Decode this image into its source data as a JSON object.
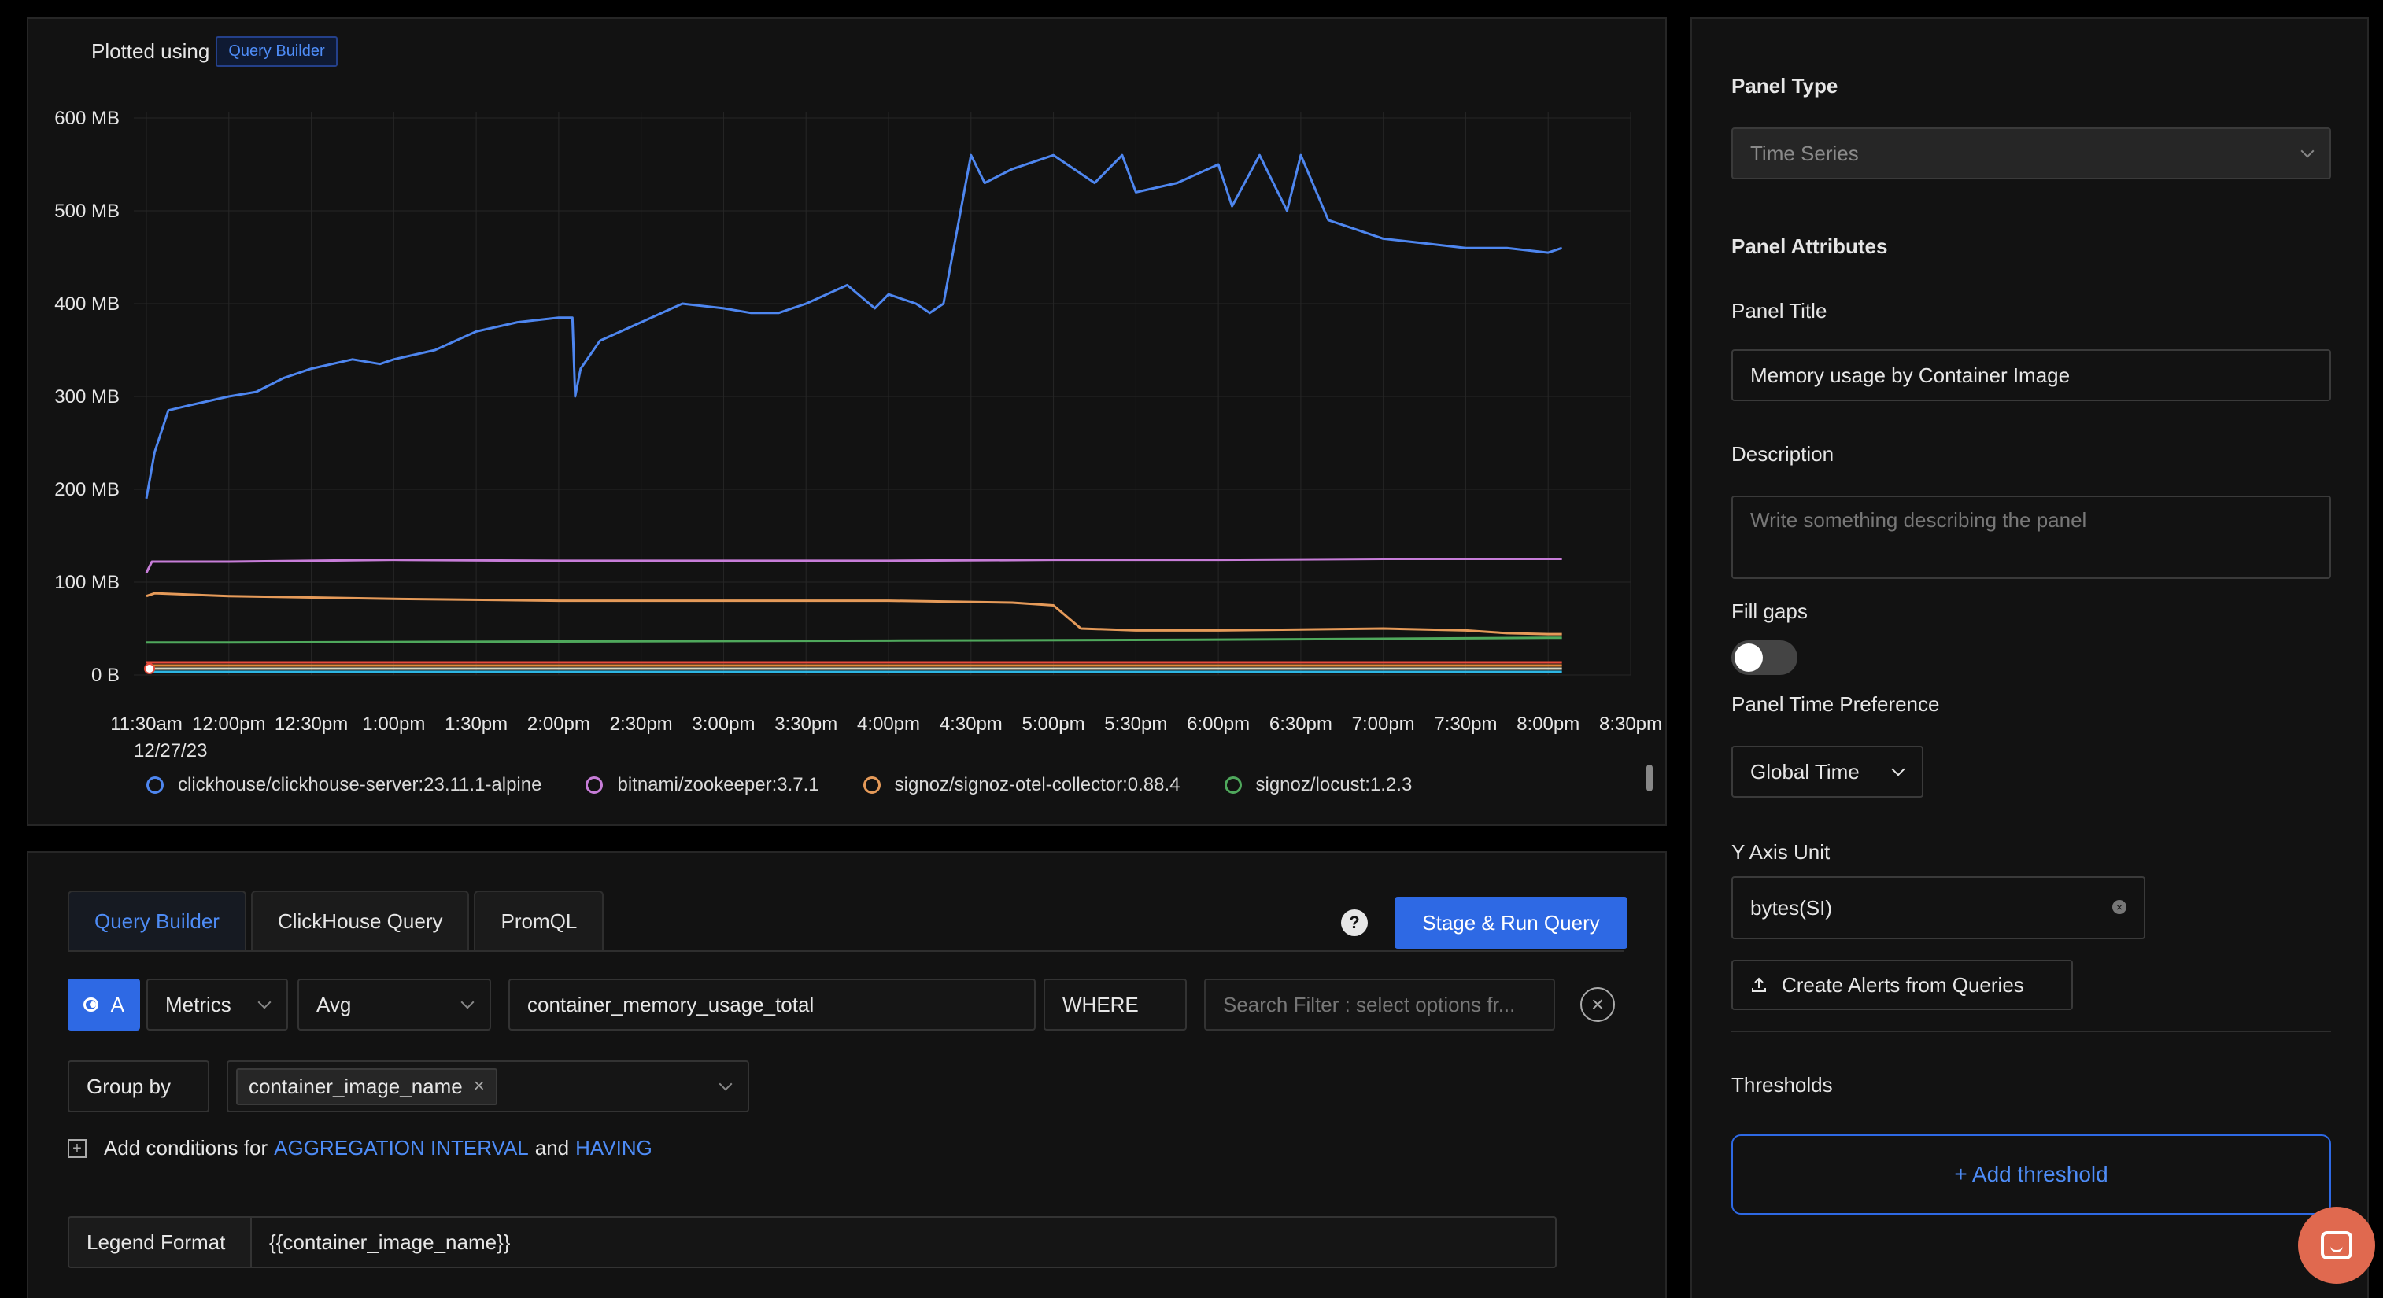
{
  "chart_panel": {
    "plotted_label": "Plotted using",
    "plotted_badge": "Query Builder",
    "date_label": "12/27/23"
  },
  "chart_data": {
    "type": "line",
    "title": "",
    "xlabel": "",
    "ylabel": "",
    "x_ticks": [
      "11:30am",
      "12:00pm",
      "12:30pm",
      "1:00pm",
      "1:30pm",
      "2:00pm",
      "2:30pm",
      "3:00pm",
      "3:30pm",
      "4:00pm",
      "4:30pm",
      "5:00pm",
      "5:30pm",
      "6:00pm",
      "6:30pm",
      "7:00pm",
      "7:30pm",
      "8:00pm",
      "8:30pm"
    ],
    "y_ticks": [
      "0 B",
      "100 MB",
      "200 MB",
      "300 MB",
      "400 MB",
      "500 MB",
      "600 MB"
    ],
    "ylim": [
      0,
      600
    ],
    "grid": true,
    "legend_position": "bottom",
    "series": [
      {
        "name": "clickhouse/clickhouse-server:23.11.1-alpine",
        "color": "#4e86ef",
        "x": [
          "11:30am",
          "11:33am",
          "11:38am",
          "11:45am",
          "12:00pm",
          "12:10pm",
          "12:20pm",
          "12:30pm",
          "12:45pm",
          "12:55pm",
          "1:00pm",
          "1:15pm",
          "1:30pm",
          "1:45pm",
          "2:00pm",
          "2:05pm",
          "2:06pm",
          "2:08pm",
          "2:15pm",
          "2:30pm",
          "2:45pm",
          "3:00pm",
          "3:10pm",
          "3:20pm",
          "3:30pm",
          "3:45pm",
          "3:55pm",
          "4:00pm",
          "4:10pm",
          "4:15pm",
          "4:20pm",
          "4:30pm",
          "4:35pm",
          "4:45pm",
          "5:00pm",
          "5:15pm",
          "5:25pm",
          "5:30pm",
          "5:45pm",
          "6:00pm",
          "6:05pm",
          "6:15pm",
          "6:25pm",
          "6:30pm",
          "6:40pm",
          "6:50pm",
          "7:00pm",
          "7:15pm",
          "7:30pm",
          "7:45pm",
          "8:00pm",
          "8:05pm"
        ],
        "values": [
          190,
          240,
          285,
          290,
          300,
          305,
          320,
          330,
          340,
          335,
          340,
          350,
          370,
          380,
          385,
          385,
          300,
          330,
          360,
          380,
          400,
          395,
          390,
          390,
          400,
          420,
          395,
          410,
          400,
          390,
          400,
          560,
          530,
          545,
          560,
          530,
          560,
          520,
          530,
          550,
          505,
          560,
          500,
          560,
          490,
          480,
          470,
          465,
          460,
          460,
          455,
          460
        ]
      },
      {
        "name": "bitnami/zookeeper:3.7.1",
        "color": "#c77dd8",
        "x": [
          "11:30am",
          "11:32am",
          "12:00pm",
          "1:00pm",
          "2:00pm",
          "3:00pm",
          "4:00pm",
          "5:00pm",
          "6:00pm",
          "7:00pm",
          "8:00pm",
          "8:05pm"
        ],
        "values": [
          110,
          122,
          122,
          124,
          123,
          123,
          123,
          124,
          124,
          125,
          125,
          125
        ]
      },
      {
        "name": "signoz/signoz-otel-collector:0.88.4",
        "color": "#e59a59",
        "x": [
          "11:30am",
          "11:33am",
          "12:00pm",
          "1:00pm",
          "2:00pm",
          "3:00pm",
          "4:00pm",
          "4:45pm",
          "5:00pm",
          "5:10pm",
          "5:30pm",
          "6:00pm",
          "7:00pm",
          "7:30pm",
          "7:45pm",
          "8:00pm",
          "8:05pm"
        ],
        "values": [
          85,
          88,
          85,
          82,
          80,
          80,
          80,
          78,
          75,
          50,
          48,
          48,
          50,
          48,
          45,
          44,
          44
        ]
      },
      {
        "name": "signoz/locust:1.2.3",
        "color": "#4fa85c",
        "x": [
          "11:30am",
          "12:00pm",
          "2:00pm",
          "4:00pm",
          "6:00pm",
          "8:00pm",
          "8:05pm"
        ],
        "values": [
          35,
          35,
          36,
          37,
          38,
          40,
          40
        ]
      }
    ],
    "extra_series_near_zero": [
      {
        "color": "#2db6e4"
      },
      {
        "color": "#d9d6c0"
      },
      {
        "color": "#e38a3a"
      },
      {
        "color": "#e74c3c"
      }
    ]
  },
  "query": {
    "tabs": [
      "Query Builder",
      "ClickHouse Query",
      "PromQL"
    ],
    "run_button": "Stage & Run Query",
    "help": "?",
    "letter": "A",
    "data_source": "Metrics",
    "aggregate": "Avg",
    "metric": "container_memory_usage_total",
    "where_label": "WHERE",
    "filter_placeholder": "Search Filter : select options fr...",
    "group_by_label": "Group by",
    "group_by_chip": "container_image_name",
    "cond_prefix": "Add conditions for",
    "cond_link1": "AGGREGATION INTERVAL",
    "cond_and": "and",
    "cond_link2": "HAVING",
    "legend_format_label": "Legend Format",
    "legend_format_value": "{{container_image_name}}"
  },
  "settings": {
    "panel_type_heading": "Panel Type",
    "panel_type_value": "Time Series",
    "panel_attributes_heading": "Panel Attributes",
    "panel_title_label": "Panel Title",
    "panel_title_value": "Memory usage by Container Image",
    "description_label": "Description",
    "description_placeholder": "Write something describing the  panel",
    "fill_gaps_label": "Fill gaps",
    "fill_gaps_on": false,
    "time_pref_label": "Panel Time Preference",
    "time_pref_value": "Global Time",
    "y_axis_label": "Y Axis Unit",
    "y_axis_value": "bytes(SI)",
    "create_alerts": "Create Alerts from Queries",
    "thresholds_label": "Thresholds",
    "add_threshold": "+ Add threshold"
  }
}
